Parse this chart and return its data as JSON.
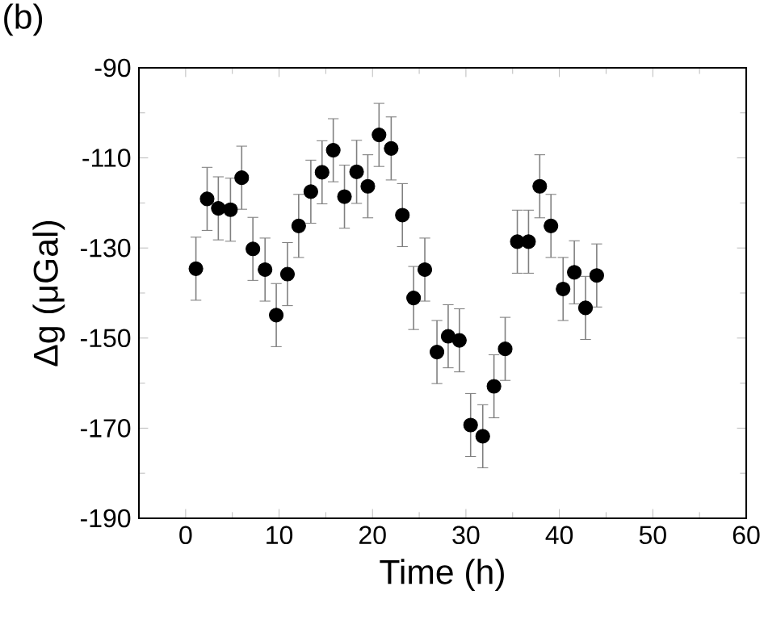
{
  "chart_data": {
    "type": "scatter",
    "title": "(b)",
    "xlabel": "Time (h)",
    "ylabel": "Δg (μGal)",
    "x": [
      1.1,
      2.3,
      3.5,
      4.8,
      6.0,
      7.2,
      8.5,
      9.7,
      10.9,
      12.1,
      13.4,
      14.6,
      15.8,
      17.0,
      18.3,
      19.5,
      20.7,
      22.0,
      23.2,
      24.4,
      25.6,
      26.9,
      28.1,
      29.3,
      30.5,
      31.8,
      33.0,
      34.2,
      35.5,
      36.7,
      37.9,
      39.1,
      40.4,
      41.6,
      42.8,
      44.0
    ],
    "series": [
      {
        "color": "#000000",
        "values": [
          -134.6,
          -119.1,
          -121.2,
          -121.5,
          -114.4,
          -130.2,
          -134.8,
          -144.9,
          -135.8,
          -125.1,
          -117.5,
          -113.2,
          -108.3,
          -118.6,
          -113.1,
          -116.3,
          -104.9,
          -107.9,
          -122.7,
          -141.1,
          -134.8,
          -153.1,
          -149.6,
          -150.5,
          -169.3,
          -171.8,
          -160.7,
          -152.4,
          -128.6,
          -128.6,
          -116.3,
          -125.1,
          -139.1,
          -135.4,
          -143.3,
          -136.1
        ],
        "errors": [
          7,
          7,
          7,
          7,
          7,
          7,
          7,
          7,
          7,
          7,
          7,
          7,
          7,
          7,
          7,
          7,
          7,
          7,
          7,
          7,
          7,
          7,
          7,
          7,
          7,
          7,
          7,
          7,
          7,
          7,
          7,
          7,
          7,
          7,
          7,
          7
        ]
      }
    ],
    "xlim": [
      -5,
      60
    ],
    "xticks": [
      0,
      10,
      20,
      30,
      40,
      50,
      60
    ],
    "ylim": [
      -190,
      -90
    ],
    "yticks": [
      -190,
      -170,
      -150,
      -130,
      -110,
      -90
    ],
    "marker": "circle",
    "grid": false
  }
}
